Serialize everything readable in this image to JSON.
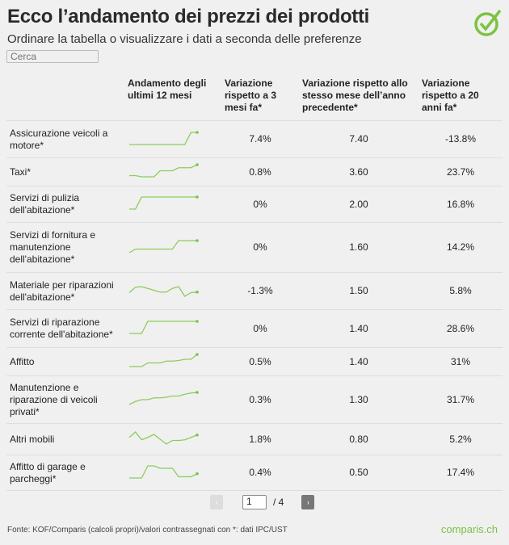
{
  "header": {
    "title": "Ecco l’andamento dei prezzi dei prodotti",
    "subtitle": "Ordinare la tabella o visualizzare i dati a seconda delle preferenze",
    "search_placeholder": "Cerca",
    "logo_icon": "check-circle-icon"
  },
  "colors": {
    "accent": "#7cc242",
    "sparkline": "#8dcc5a"
  },
  "table": {
    "columns": [
      "",
      "Andamento degli ultimi 12 mesi",
      "Variazione rispetto a 3 mesi fa*",
      "Variazione rispetto allo stesso mese dell’anno precedente*",
      "Variazione rispetto a 20 anni fa*"
    ],
    "rows": [
      {
        "name": "Assicurazione veicoli a motore*",
        "trend": [
          0,
          0,
          0,
          0,
          0,
          0,
          0,
          0,
          0,
          0,
          1,
          1
        ],
        "m3": "7.4%",
        "y1": "7.40",
        "y20": "-13.8%"
      },
      {
        "name": "Taxi*",
        "trend": [
          0.1,
          0.1,
          0,
          0,
          0,
          0.5,
          0.5,
          0.5,
          0.75,
          0.75,
          0.75,
          1
        ],
        "m3": "0.8%",
        "y1": "3.60",
        "y20": "23.7%"
      },
      {
        "name": "Servizi di pulizia dell'abitazione*",
        "trend": [
          0,
          0,
          1,
          1,
          1,
          1,
          1,
          1,
          1,
          1,
          1,
          1
        ],
        "m3": "0%",
        "y1": "2.00",
        "y20": "16.8%"
      },
      {
        "name": "Servizi di fornitura e manutenzione dell'abitazione*",
        "trend": [
          0,
          0.3,
          0.3,
          0.3,
          0.3,
          0.3,
          0.3,
          0.3,
          1,
          1,
          1,
          1
        ],
        "m3": "0%",
        "y1": "1.60",
        "y20": "14.2%"
      },
      {
        "name": "Materiale per riparazioni dell'abitazione*",
        "trend": [
          0.3,
          0.75,
          0.8,
          0.65,
          0.5,
          0.35,
          0.35,
          0.65,
          0.8,
          0,
          0.3,
          0.35
        ],
        "m3": "-1.3%",
        "y1": "1.50",
        "y20": "5.8%"
      },
      {
        "name": "Servizi di riparazione corrente dell'abitazione*",
        "trend": [
          0,
          0,
          0,
          1,
          1,
          1,
          1,
          1,
          1,
          1,
          1,
          1
        ],
        "m3": "0%",
        "y1": "1.40",
        "y20": "28.6%"
      },
      {
        "name": "Affitto",
        "trend": [
          0,
          0,
          0,
          0.3,
          0.3,
          0.3,
          0.45,
          0.45,
          0.5,
          0.6,
          0.6,
          1
        ],
        "m3": "0.5%",
        "y1": "1.40",
        "y20": "31%"
      },
      {
        "name": "Manutenzione e riparazione di veicoli privati*",
        "trend": [
          0,
          0.25,
          0.4,
          0.4,
          0.55,
          0.55,
          0.6,
          0.7,
          0.7,
          0.85,
          0.95,
          1
        ],
        "m3": "0.3%",
        "y1": "1.30",
        "y20": "31.7%"
      },
      {
        "name": "Altri mobili",
        "trend": [
          0.55,
          1,
          0.35,
          0.55,
          0.8,
          0.4,
          0,
          0.3,
          0.3,
          0.35,
          0.55,
          0.75
        ],
        "m3": "1.8%",
        "y1": "0.80",
        "y20": "5.2%"
      },
      {
        "name": "Affitto di garage e parcheggi*",
        "trend": [
          0,
          0,
          0,
          1,
          1,
          0.8,
          0.8,
          0.8,
          0.1,
          0.1,
          0.1,
          0.35
        ],
        "m3": "0.4%",
        "y1": "0.50",
        "y20": "17.4%"
      }
    ]
  },
  "pagination": {
    "prev": "‹",
    "next": "›",
    "current": "1",
    "total": "/ 4"
  },
  "footer": {
    "source": "Fonte: KOF/Comparis (calcoli propri)/valori contrassegnati con *: dati IPC/UST",
    "brand": "comparis.ch"
  }
}
